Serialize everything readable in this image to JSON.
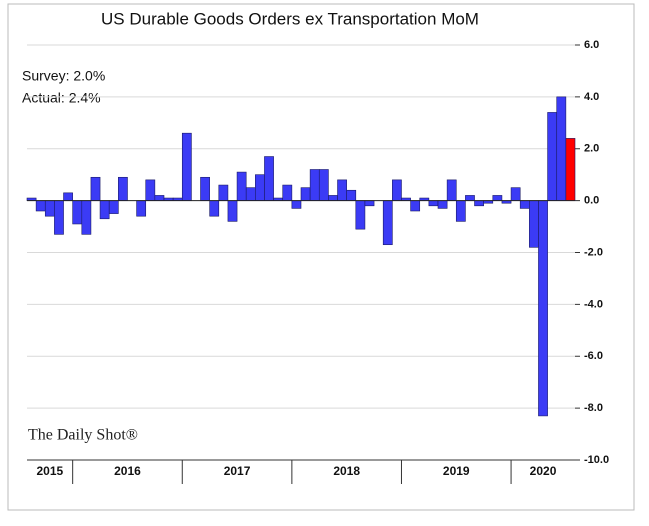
{
  "chart_data": {
    "type": "bar",
    "title": "US Durable Goods Orders ex Transportation MoM",
    "annotations": [
      "Survey: 2.0%",
      "Actual:  2.4%"
    ],
    "source": "The Daily Shot®",
    "categories": [
      "2015",
      null,
      null,
      null,
      null,
      "2016",
      null,
      null,
      null,
      null,
      null,
      null,
      null,
      null,
      null,
      null,
      null,
      "2017",
      null,
      null,
      null,
      null,
      null,
      null,
      null,
      null,
      null,
      null,
      null,
      "2018",
      null,
      null,
      null,
      null,
      null,
      null,
      null,
      null,
      null,
      null,
      null,
      "2019",
      null,
      null,
      null,
      null,
      null,
      null,
      null,
      null,
      null,
      null,
      null,
      "2020",
      null,
      null,
      null,
      null,
      null,
      null
    ],
    "values": [
      0.1,
      -0.4,
      -0.6,
      -1.3,
      0.3,
      -0.9,
      -1.3,
      0.9,
      -0.7,
      -0.5,
      0.9,
      0.0,
      -0.6,
      0.8,
      0.2,
      0.1,
      0.1,
      2.6,
      0.0,
      0.9,
      -0.6,
      0.6,
      -0.8,
      1.1,
      0.5,
      1.0,
      1.7,
      0.1,
      0.6,
      -0.3,
      0.5,
      1.2,
      1.2,
      0.2,
      0.8,
      0.4,
      -1.1,
      -0.2,
      0.0,
      -1.7,
      0.8,
      0.1,
      -0.4,
      0.1,
      -0.2,
      -0.3,
      0.8,
      -0.8,
      0.2,
      -0.2,
      -0.1,
      0.2,
      -0.1,
      0.5,
      -0.3,
      -1.8,
      -8.3,
      3.4,
      4.0,
      2.4
    ],
    "colors": [
      "#3b3bf5",
      "#3b3bf5",
      "#3b3bf5",
      "#3b3bf5",
      "#3b3bf5",
      "#3b3bf5",
      "#3b3bf5",
      "#3b3bf5",
      "#3b3bf5",
      "#3b3bf5",
      "#3b3bf5",
      "#3b3bf5",
      "#3b3bf5",
      "#3b3bf5",
      "#3b3bf5",
      "#3b3bf5",
      "#3b3bf5",
      "#3b3bf5",
      "#3b3bf5",
      "#3b3bf5",
      "#3b3bf5",
      "#3b3bf5",
      "#3b3bf5",
      "#3b3bf5",
      "#3b3bf5",
      "#3b3bf5",
      "#3b3bf5",
      "#3b3bf5",
      "#3b3bf5",
      "#3b3bf5",
      "#3b3bf5",
      "#3b3bf5",
      "#3b3bf5",
      "#3b3bf5",
      "#3b3bf5",
      "#3b3bf5",
      "#3b3bf5",
      "#3b3bf5",
      "#3b3bf5",
      "#3b3bf5",
      "#3b3bf5",
      "#3b3bf5",
      "#3b3bf5",
      "#3b3bf5",
      "#3b3bf5",
      "#3b3bf5",
      "#3b3bf5",
      "#3b3bf5",
      "#3b3bf5",
      "#3b3bf5",
      "#3b3bf5",
      "#3b3bf5",
      "#3b3bf5",
      "#3b3bf5",
      "#3b3bf5",
      "#3b3bf5",
      "#3b3bf5",
      "#3b3bf5",
      "#3b3bf5",
      "#ff0000"
    ],
    "ylim": [
      -10,
      6
    ],
    "yticks": [
      {
        "value": -10,
        "label": "-10.0"
      },
      {
        "value": -8,
        "label": "-8.0"
      },
      {
        "value": -6,
        "label": "-6.0"
      },
      {
        "value": -4,
        "label": "-4.0"
      },
      {
        "value": -2,
        "label": "-2.0"
      },
      {
        "value": 0,
        "label": "0.0"
      },
      {
        "value": 2,
        "label": "2.0"
      },
      {
        "value": 4,
        "label": "4.0"
      },
      {
        "value": 6,
        "label": "6.0"
      }
    ],
    "grid": true
  }
}
